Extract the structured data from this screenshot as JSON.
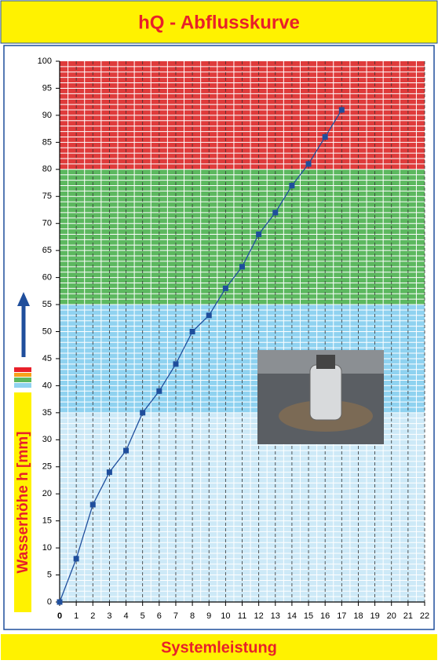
{
  "header": {
    "title": "hQ - Abflusskurve"
  },
  "footer": {
    "title": "Systemleistung"
  },
  "chart_data": {
    "type": "line",
    "y_label": "Wasserhöhe h [mm]",
    "x": [
      0,
      1,
      2,
      3,
      4,
      5,
      6,
      7,
      8,
      9,
      10,
      11,
      12,
      13,
      14,
      15,
      16,
      17
    ],
    "series": [
      {
        "color": "#1f4e9c",
        "values": [
          0,
          8,
          18,
          24,
          28,
          35,
          39,
          44,
          50,
          53,
          58,
          62,
          68,
          72,
          77,
          81,
          86,
          91
        ]
      }
    ],
    "xlim": [
      0,
      22
    ],
    "ylim": [
      0,
      100
    ],
    "xticks": [
      0,
      1,
      2,
      3,
      4,
      5,
      6,
      7,
      8,
      9,
      10,
      11,
      12,
      13,
      14,
      15,
      16,
      17,
      18,
      19,
      20,
      21,
      22
    ],
    "yticks": [
      0,
      5,
      10,
      15,
      20,
      25,
      30,
      35,
      40,
      45,
      50,
      55,
      60,
      65,
      70,
      75,
      80,
      85,
      90,
      95,
      100
    ],
    "bands": [
      {
        "from": 0,
        "to": 35,
        "color": "#cde9f7"
      },
      {
        "from": 35,
        "to": 55,
        "color": "#8fd2f0"
      },
      {
        "from": 55,
        "to": 80,
        "color": "#5cb85f"
      },
      {
        "from": 80,
        "to": 100,
        "color": "#df3b3b"
      }
    ],
    "grid": true
  }
}
